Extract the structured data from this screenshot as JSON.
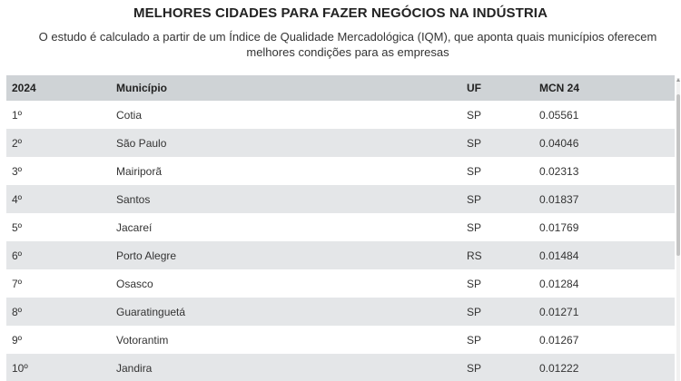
{
  "header": {
    "title": "MELHORES CIDADES PARA FAZER NEGÓCIOS NA INDÚSTRIA",
    "subtitle": "O estudo é calculado a partir de um Índice de Qualidade Mercadológica (IQM), que aponta quais municípios oferecem melhores condições para as empresas"
  },
  "table": {
    "columns": [
      "2024",
      "Município",
      "UF",
      "MCN 24"
    ],
    "rows": [
      {
        "rank": "1º",
        "city": "Cotia",
        "uf": "SP",
        "mcn": "0.05561"
      },
      {
        "rank": "2º",
        "city": "São Paulo",
        "uf": "SP",
        "mcn": "0.04046"
      },
      {
        "rank": "3º",
        "city": "Mairiporã",
        "uf": "SP",
        "mcn": "0.02313"
      },
      {
        "rank": "4º",
        "city": "Santos",
        "uf": "SP",
        "mcn": "0.01837"
      },
      {
        "rank": "5º",
        "city": "Jacareí",
        "uf": "SP",
        "mcn": "0.01769"
      },
      {
        "rank": "6º",
        "city": "Porto Alegre",
        "uf": "RS",
        "mcn": "0.01484"
      },
      {
        "rank": "7º",
        "city": "Osasco",
        "uf": "SP",
        "mcn": "0.01284"
      },
      {
        "rank": "8º",
        "city": "Guaratinguetá",
        "uf": "SP",
        "mcn": "0.01271"
      },
      {
        "rank": "9º",
        "city": "Votorantim",
        "uf": "SP",
        "mcn": "0.01267"
      },
      {
        "rank": "10º",
        "city": "Jandira",
        "uf": "SP",
        "mcn": "0.01222"
      }
    ]
  },
  "colors": {
    "header_bg": "#cfd3d6",
    "row_alt_bg": "#e4e6e8",
    "row_bg": "#ffffff"
  }
}
